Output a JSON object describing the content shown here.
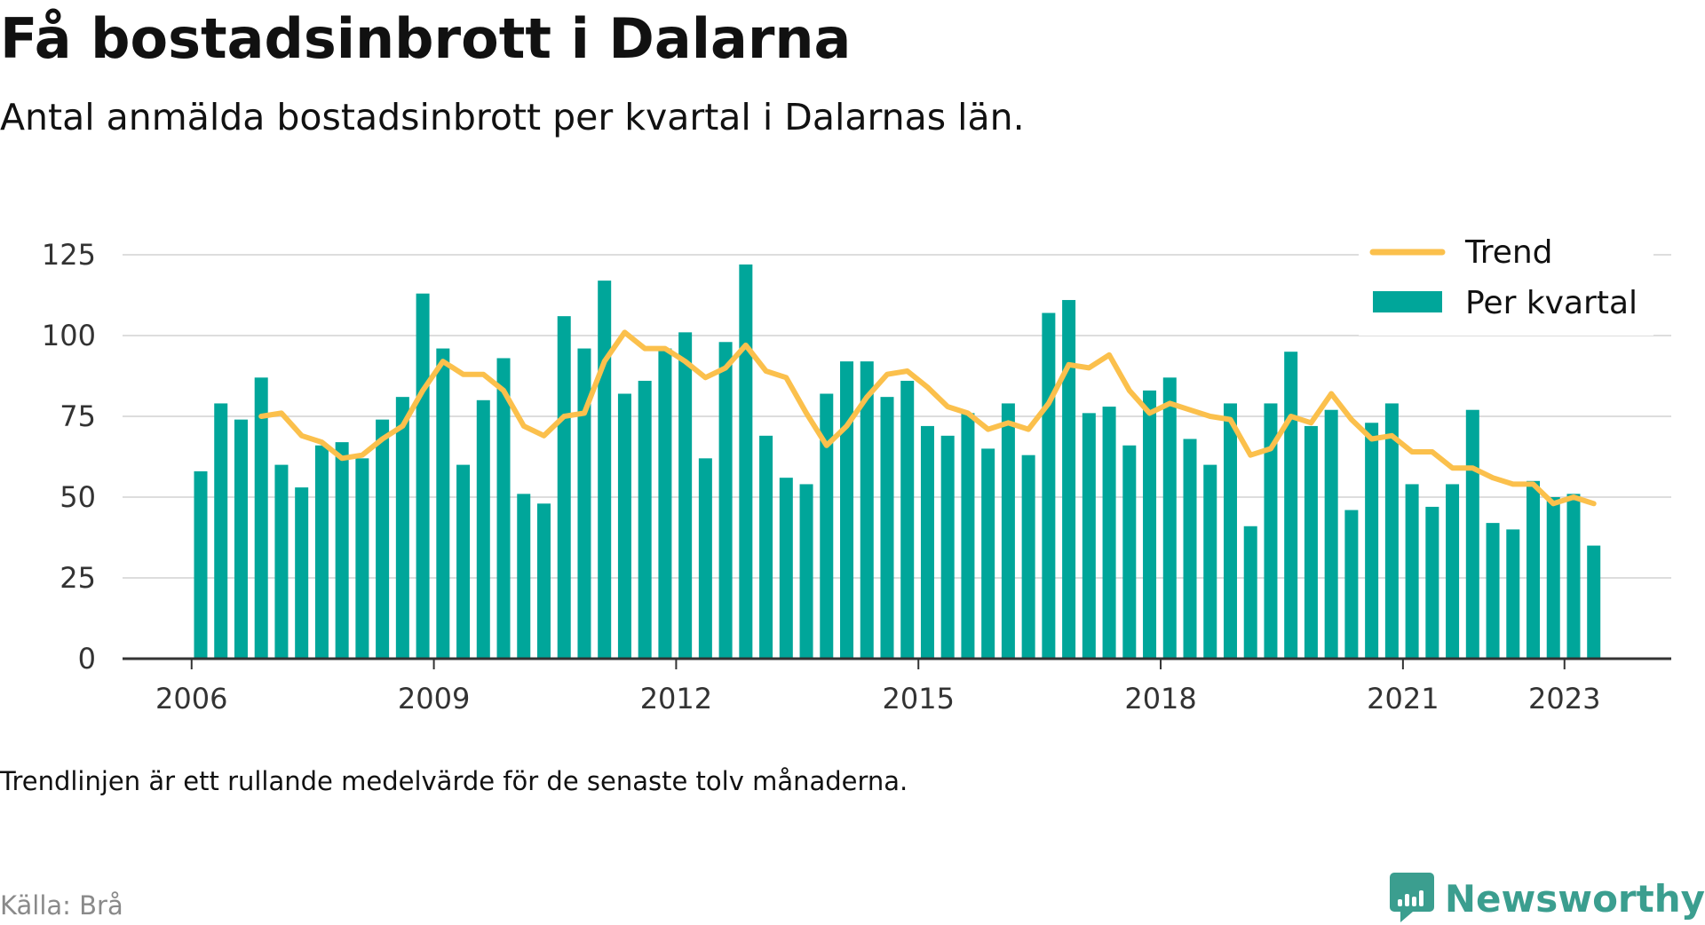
{
  "title": "Få bostadsinbrott i Dalarna",
  "subtitle": "Antal anmälda bostadsinbrott per kvartal i Dalarnas län.",
  "note": "Trendlinjen är ett rullande medelvärde för de senaste tolv månaderna.",
  "source": "Källa: Brå",
  "brand": {
    "name": "Newsworthy",
    "icon": "newsworthy-logo-icon",
    "color": "#3b9e8f"
  },
  "chart_data": {
    "type": "bar",
    "title": "Få bostadsinbrott i Dalarna",
    "subtitle": "Antal anmälda bostadsinbrott per kvartal i Dalarnas län.",
    "xlabel": "",
    "ylabel": "",
    "ylim": [
      0,
      125
    ],
    "yticks": [
      0,
      25,
      50,
      75,
      100,
      125
    ],
    "ytick_labels": [
      "0",
      "25",
      "50",
      "75",
      "100",
      "125"
    ],
    "xticks": [
      "2006",
      "2009",
      "2012",
      "2015",
      "2018",
      "2021",
      "2023"
    ],
    "grid": true,
    "legend_position": "top-right",
    "legend": [
      {
        "label": "Trend",
        "kind": "line",
        "color": "#fbc04c"
      },
      {
        "label": "Per kvartal",
        "kind": "bar",
        "color": "#00a69a"
      }
    ],
    "colors": {
      "bars": "#00a69a",
      "trend": "#fbc04c",
      "grid": "#dddddd",
      "axis": "#333333"
    },
    "categories": [
      "2006 Q1",
      "2006 Q2",
      "2006 Q3",
      "2006 Q4",
      "2007 Q1",
      "2007 Q2",
      "2007 Q3",
      "2007 Q4",
      "2008 Q1",
      "2008 Q2",
      "2008 Q3",
      "2008 Q4",
      "2009 Q1",
      "2009 Q2",
      "2009 Q3",
      "2009 Q4",
      "2010 Q1",
      "2010 Q2",
      "2010 Q3",
      "2010 Q4",
      "2011 Q1",
      "2011 Q2",
      "2011 Q3",
      "2011 Q4",
      "2012 Q1",
      "2012 Q2",
      "2012 Q3",
      "2012 Q4",
      "2013 Q1",
      "2013 Q2",
      "2013 Q3",
      "2013 Q4",
      "2014 Q1",
      "2014 Q2",
      "2014 Q3",
      "2014 Q4",
      "2015 Q1",
      "2015 Q2",
      "2015 Q3",
      "2015 Q4",
      "2016 Q1",
      "2016 Q2",
      "2016 Q3",
      "2016 Q4",
      "2017 Q1",
      "2017 Q2",
      "2017 Q3",
      "2017 Q4",
      "2018 Q1",
      "2018 Q2",
      "2018 Q3",
      "2018 Q4",
      "2019 Q1",
      "2019 Q2",
      "2019 Q3",
      "2019 Q4",
      "2020 Q1",
      "2020 Q2",
      "2020 Q3",
      "2020 Q4",
      "2021 Q1",
      "2021 Q2",
      "2021 Q3",
      "2021 Q4",
      "2022 Q1",
      "2022 Q2",
      "2022 Q3",
      "2022 Q4",
      "2023 Q1",
      "2023 Q2"
    ],
    "series": [
      {
        "name": "Per kvartal",
        "type": "bar",
        "values": [
          58,
          79,
          74,
          87,
          60,
          53,
          66,
          67,
          62,
          74,
          81,
          113,
          96,
          60,
          80,
          93,
          51,
          48,
          106,
          96,
          117,
          82,
          86,
          96,
          101,
          62,
          98,
          122,
          69,
          56,
          54,
          82,
          92,
          92,
          81,
          86,
          72,
          69,
          76,
          65,
          79,
          63,
          107,
          111,
          76,
          78,
          66,
          83,
          87,
          68,
          60,
          79,
          41,
          79,
          95,
          72,
          77,
          46,
          73,
          79,
          54,
          47,
          54,
          77,
          42,
          40,
          55,
          50,
          51,
          35
        ]
      },
      {
        "name": "Trend",
        "type": "line",
        "values": [
          null,
          null,
          null,
          75,
          76,
          69,
          67,
          62,
          63,
          68,
          72,
          83,
          92,
          88,
          88,
          83,
          72,
          69,
          75,
          76,
          92,
          101,
          96,
          96,
          92,
          87,
          90,
          97,
          89,
          87,
          76,
          66,
          72,
          81,
          88,
          89,
          84,
          78,
          76,
          71,
          73,
          71,
          79,
          91,
          90,
          94,
          83,
          76,
          79,
          77,
          75,
          74,
          63,
          65,
          75,
          73,
          82,
          74,
          68,
          69,
          64,
          64,
          59,
          59,
          56,
          54,
          54,
          48,
          50,
          48
        ]
      }
    ]
  }
}
